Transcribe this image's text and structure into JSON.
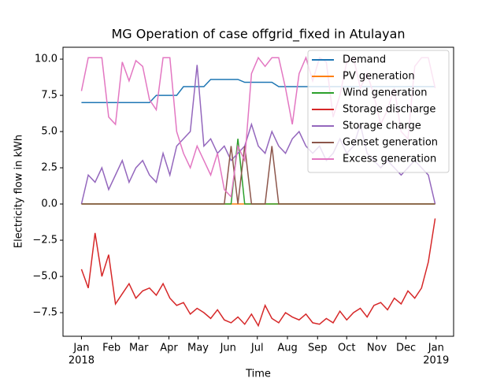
{
  "chart_data": {
    "type": "line",
    "title": "MG Operation of case offgrid_fixed in Atulayan",
    "xlabel": "Time",
    "ylabel": "Electricity flow in kWh",
    "x": [
      "2018-01-01",
      "2018-01-08",
      "2018-01-15",
      "2018-01-22",
      "2018-01-29",
      "2018-02-05",
      "2018-02-12",
      "2018-02-19",
      "2018-02-26",
      "2018-03-05",
      "2018-03-12",
      "2018-03-19",
      "2018-03-26",
      "2018-04-02",
      "2018-04-09",
      "2018-04-16",
      "2018-04-23",
      "2018-04-30",
      "2018-05-07",
      "2018-05-14",
      "2018-05-21",
      "2018-05-28",
      "2018-06-04",
      "2018-06-11",
      "2018-06-18",
      "2018-06-25",
      "2018-07-02",
      "2018-07-09",
      "2018-07-16",
      "2018-07-23",
      "2018-07-30",
      "2018-08-06",
      "2018-08-13",
      "2018-08-20",
      "2018-08-27",
      "2018-09-03",
      "2018-09-10",
      "2018-09-17",
      "2018-09-24",
      "2018-10-01",
      "2018-10-08",
      "2018-10-15",
      "2018-10-22",
      "2018-10-29",
      "2018-11-05",
      "2018-11-12",
      "2018-11-19",
      "2018-11-26",
      "2018-12-03",
      "2018-12-10",
      "2018-12-17",
      "2018-12-24",
      "2018-12-31"
    ],
    "series": [
      {
        "name": "Demand",
        "color": "#1f77b4",
        "values": [
          7.0,
          7.0,
          7.0,
          7.0,
          7.0,
          7.0,
          7.0,
          7.0,
          7.0,
          7.0,
          7.0,
          7.5,
          7.5,
          7.5,
          7.5,
          8.1,
          8.1,
          8.1,
          8.1,
          8.6,
          8.6,
          8.6,
          8.6,
          8.6,
          8.4,
          8.4,
          8.4,
          8.4,
          8.4,
          8.1,
          8.1,
          8.1,
          8.1,
          8.1,
          8.1,
          8.1,
          8.1,
          8.1,
          8.1,
          8.1,
          8.1,
          8.1,
          8.1,
          8.1,
          8.1,
          8.1,
          8.1,
          8.1,
          8.1,
          8.1,
          8.1,
          8.1,
          8.1
        ]
      },
      {
        "name": "PV generation",
        "color": "#ff7f0e",
        "values": [
          0,
          0,
          0,
          0,
          0,
          0,
          0,
          0,
          0,
          0,
          0,
          0,
          0,
          0,
          0,
          0,
          0,
          0,
          0,
          0,
          0,
          0,
          0,
          0,
          0,
          0,
          0,
          0,
          0,
          0,
          0,
          0,
          0,
          0,
          0,
          0,
          0,
          0,
          0,
          0,
          0,
          0,
          0,
          0,
          0,
          0,
          0,
          0,
          0,
          0,
          0,
          0,
          0
        ]
      },
      {
        "name": "Wind generation",
        "color": "#2ca02c",
        "values": [
          0,
          0,
          0,
          0,
          0,
          0,
          0,
          0,
          0,
          0,
          0,
          0,
          0,
          0,
          0,
          0,
          0,
          0,
          0,
          0,
          0,
          0,
          0,
          4.5,
          0,
          0,
          0,
          0,
          0,
          0,
          0,
          0,
          0,
          0,
          0,
          0,
          0,
          0,
          0,
          0,
          0,
          0,
          0,
          0,
          0,
          0,
          0,
          0,
          0,
          0,
          0,
          0,
          0
        ]
      },
      {
        "name": "Storage discharge",
        "color": "#d62728",
        "values": [
          -4.5,
          -5.8,
          -2.0,
          -5.0,
          -3.5,
          -6.9,
          -6.2,
          -5.5,
          -6.5,
          -6.0,
          -5.8,
          -6.3,
          -5.5,
          -6.5,
          -7.0,
          -6.8,
          -7.6,
          -7.2,
          -7.5,
          -7.9,
          -7.3,
          -8.0,
          -8.2,
          -7.8,
          -8.3,
          -7.6,
          -8.4,
          -7.0,
          -7.9,
          -8.2,
          -7.5,
          -7.8,
          -8.0,
          -7.6,
          -8.2,
          -8.3,
          -7.9,
          -8.2,
          -7.4,
          -8.0,
          -7.5,
          -7.2,
          -7.8,
          -7.0,
          -6.8,
          -7.3,
          -6.5,
          -6.9,
          -6.0,
          -6.5,
          -5.8,
          -4.0,
          -1.0
        ]
      },
      {
        "name": "Storage charge",
        "color": "#9467bd",
        "values": [
          0,
          2.0,
          1.5,
          2.5,
          1.0,
          2.0,
          3.0,
          1.5,
          2.5,
          3.0,
          2.0,
          1.5,
          3.5,
          2.0,
          4.0,
          4.5,
          5.0,
          9.6,
          4.0,
          4.5,
          3.5,
          4.0,
          3.0,
          3.5,
          4.0,
          5.5,
          4.0,
          3.5,
          5.0,
          4.0,
          3.5,
          4.5,
          5.0,
          4.0,
          3.5,
          4.0,
          3.0,
          3.5,
          4.5,
          3.5,
          4.0,
          5.5,
          3.5,
          3.0,
          2.5,
          3.0,
          2.5,
          2.0,
          2.5,
          3.0,
          2.5,
          2.0,
          0
        ]
      },
      {
        "name": "Genset generation",
        "color": "#8c564b",
        "values": [
          0,
          0,
          0,
          0,
          0,
          0,
          0,
          0,
          0,
          0,
          0,
          0,
          0,
          0,
          0,
          0,
          0,
          0,
          0,
          0,
          0,
          0,
          4.0,
          0,
          4.0,
          0,
          0,
          0,
          4.0,
          0,
          0,
          0,
          0,
          0,
          0,
          0,
          0,
          0,
          0,
          0,
          0,
          0,
          0,
          0,
          0,
          0,
          0,
          0,
          0,
          0,
          0,
          0,
          0
        ]
      },
      {
        "name": "Excess generation",
        "color": "#e377c2",
        "values": [
          7.8,
          10.1,
          10.1,
          10.1,
          6.0,
          5.5,
          9.8,
          8.5,
          9.9,
          9.5,
          7.2,
          6.5,
          10.1,
          10.1,
          5.0,
          3.5,
          2.5,
          4.0,
          3.0,
          2.0,
          3.5,
          1.0,
          0.5,
          4.0,
          3.0,
          9.0,
          10.1,
          9.5,
          10.1,
          10.1,
          8.0,
          5.5,
          9.0,
          10.1,
          8.5,
          10.1,
          9.8,
          6.0,
          7.5,
          9.8,
          10.1,
          8.0,
          9.0,
          7.5,
          5.5,
          6.5,
          8.0,
          5.0,
          4.5,
          9.5,
          10.1,
          10.1,
          8.0
        ]
      }
    ],
    "xlim": [
      "2017-12-13",
      "2019-01-19"
    ],
    "xticks": [
      {
        "value": "2018-01-01",
        "label": "Jan"
      },
      {
        "value": "2018-02-01",
        "label": "Feb"
      },
      {
        "value": "2018-03-01",
        "label": "Mar"
      },
      {
        "value": "2018-04-01",
        "label": "Apr"
      },
      {
        "value": "2018-05-01",
        "label": "May"
      },
      {
        "value": "2018-06-01",
        "label": "Jun"
      },
      {
        "value": "2018-07-01",
        "label": "Jul"
      },
      {
        "value": "2018-08-01",
        "label": "Aug"
      },
      {
        "value": "2018-09-01",
        "label": "Sep"
      },
      {
        "value": "2018-10-01",
        "label": "Oct"
      },
      {
        "value": "2018-11-01",
        "label": "Nov"
      },
      {
        "value": "2018-12-01",
        "label": "Dec"
      },
      {
        "value": "2019-01-01",
        "label": "Jan"
      }
    ],
    "xtick_years": [
      {
        "value": "2018-01-01",
        "label": "2018"
      },
      {
        "value": "2019-01-01",
        "label": "2019"
      }
    ],
    "ylim": [
      -9.13,
      10.82
    ],
    "yticks": [
      {
        "value": -7.5,
        "label": "−7.5"
      },
      {
        "value": -5,
        "label": "−5.0"
      },
      {
        "value": -2.5,
        "label": "−2.5"
      },
      {
        "value": 0,
        "label": "0.0"
      },
      2.5,
      {
        "value": 5,
        "label": "5.0"
      },
      7.5,
      {
        "value": 10,
        "label": "10.0"
      }
    ],
    "legend": "upper right"
  }
}
